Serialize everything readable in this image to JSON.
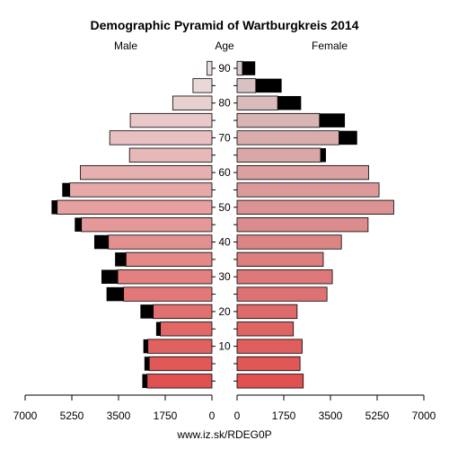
{
  "chart_data": {
    "type": "bar",
    "title": "Demographic Pyramid of Wartburgkreis 2014",
    "left_label": "Male",
    "center_label": "Age",
    "right_label": "Female",
    "source": "www.iz.sk/RDEG0P",
    "age_groups": [
      "0-4",
      "5-9",
      "10-14",
      "15-19",
      "20-24",
      "25-29",
      "30-34",
      "35-39",
      "40-44",
      "45-49",
      "50-54",
      "55-59",
      "60-64",
      "65-69",
      "70-74",
      "75-79",
      "80-84",
      "85-89",
      "90+"
    ],
    "age_ticks": [
      10,
      20,
      30,
      40,
      50,
      60,
      70,
      80,
      90
    ],
    "x_ticks_left": [
      "7000",
      "5250",
      "3500",
      "1750",
      "0"
    ],
    "x_ticks_right": [
      "0",
      "1750",
      "3500",
      "5250",
      "7000"
    ],
    "xlim": [
      0,
      7000
    ],
    "series": [
      {
        "name": "Male",
        "values": [
          2430,
          2350,
          2400,
          1930,
          2200,
          3310,
          3530,
          3220,
          3880,
          4890,
          5800,
          5330,
          4930,
          3090,
          3830,
          3060,
          1470,
          710,
          180
        ],
        "excess": [
          180,
          180,
          170,
          160,
          480,
          640,
          610,
          410,
          530,
          250,
          210,
          280,
          0,
          0,
          0,
          0,
          0,
          0,
          0
        ]
      },
      {
        "name": "Female",
        "values": [
          2480,
          2360,
          2440,
          2110,
          2250,
          3370,
          3570,
          3230,
          3910,
          4910,
          5870,
          5320,
          4930,
          3130,
          3820,
          3090,
          1520,
          700,
          200
        ],
        "excess": [
          0,
          0,
          0,
          0,
          0,
          0,
          0,
          0,
          0,
          0,
          0,
          0,
          0,
          200,
          680,
          950,
          880,
          970,
          480
        ]
      }
    ],
    "colors": {
      "excess": "#000000",
      "outline": "#000000",
      "young": "#e05050",
      "old": "#eae0e0",
      "female_old": "#d8c8c8"
    }
  }
}
